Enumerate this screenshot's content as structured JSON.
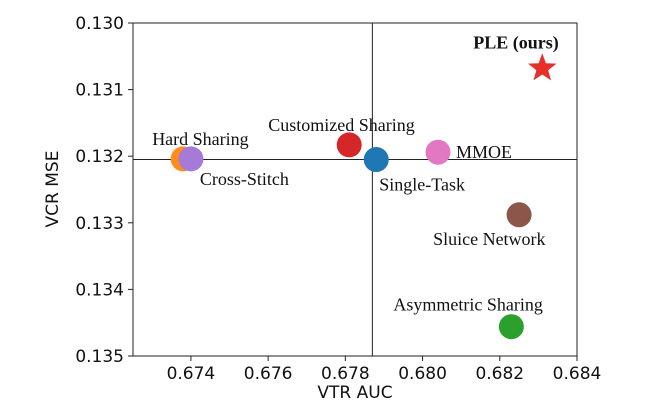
{
  "chart_data": {
    "type": "scatter",
    "title": "",
    "xlabel": "VTR AUC",
    "ylabel": "VCR MSE",
    "xlim": [
      0.6725,
      0.684
    ],
    "ylim": [
      0.13,
      0.135
    ],
    "y_inverted": true,
    "x_ticks": [
      "0.674",
      "0.676",
      "0.678",
      "0.680",
      "0.682",
      "0.684"
    ],
    "x_tick_values": [
      0.674,
      0.676,
      0.678,
      0.68,
      0.682,
      0.684
    ],
    "y_ticks": [
      "0.130",
      "0.131",
      "0.132",
      "0.133",
      "0.134",
      "0.135"
    ],
    "y_tick_values": [
      0.13,
      0.131,
      0.132,
      0.133,
      0.134,
      0.135
    ],
    "reference_lines": {
      "x": 0.6787,
      "y": 0.13205
    },
    "points": [
      {
        "label": "Hard Sharing",
        "x": 0.6738,
        "y": 0.13204,
        "color": "#ff8c1a",
        "marker": "circle",
        "bold": false
      },
      {
        "label": "Cross-Stitch",
        "x": 0.674,
        "y": 0.13204,
        "color": "#a67ad9",
        "marker": "circle",
        "bold": false
      },
      {
        "label": "Customized Sharing",
        "x": 0.6781,
        "y": 0.13183,
        "color": "#d62728",
        "marker": "circle",
        "bold": false
      },
      {
        "label": "Single-Task",
        "x": 0.6788,
        "y": 0.13205,
        "color": "#1f77b4",
        "marker": "circle",
        "bold": false
      },
      {
        "label": "MMOE",
        "x": 0.6804,
        "y": 0.13194,
        "color": "#e377c2",
        "marker": "circle",
        "bold": false
      },
      {
        "label": "Sluice Network",
        "x": 0.6825,
        "y": 0.13288,
        "color": "#8c564b",
        "marker": "circle",
        "bold": false
      },
      {
        "label": "Asymmetric Sharing",
        "x": 0.6823,
        "y": 0.13456,
        "color": "#2ca02c",
        "marker": "circle",
        "bold": false
      },
      {
        "label": "PLE (ours)",
        "x": 0.6831,
        "y": 0.13068,
        "color": "#e8302a",
        "marker": "star",
        "bold": true
      }
    ]
  }
}
